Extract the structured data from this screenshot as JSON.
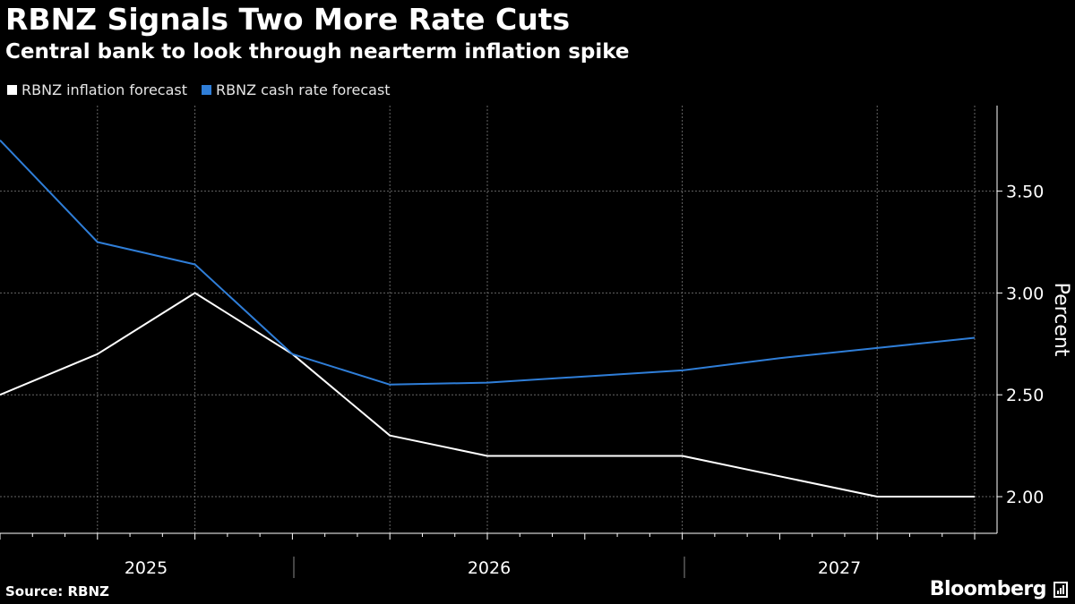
{
  "header": {
    "title": "RBNZ Signals Two More Rate Cuts",
    "subtitle": "Central bank to look through nearterm inflation spike"
  },
  "footer": {
    "source": "Source: RBNZ",
    "brand": "Bloomberg",
    "brand_icon": "bloomberg-chart-icon"
  },
  "colors": {
    "background": "#000000",
    "inflation": "#ffffff",
    "cash_rate": "#2f7ed8",
    "grid": "#666666"
  },
  "chart_data": {
    "type": "line",
    "title": "RBNZ Signals Two More Rate Cuts",
    "subtitle": "Central bank to look through nearterm inflation spike",
    "ylabel": "Percent",
    "xlabel": "",
    "ylim": [
      1.82,
      3.92
    ],
    "yticks": [
      2.0,
      2.5,
      3.0,
      3.5
    ],
    "ytick_labels": [
      "2.00",
      "2.50",
      "3.00",
      "3.50"
    ],
    "x_periods": [
      "2025Q1",
      "2025Q2",
      "2025Q3",
      "2025Q4",
      "2026Q1",
      "2026Q2",
      "2026Q3",
      "2026Q4",
      "2027Q1",
      "2027Q2",
      "2027Q3"
    ],
    "x_year_labels": [
      "2025",
      "2026",
      "2027"
    ],
    "legend": [
      "RBNZ inflation forecast",
      "RBNZ cash rate forecast"
    ],
    "series": [
      {
        "name": "RBNZ inflation forecast",
        "values": [
          2.5,
          2.7,
          3.0,
          2.7,
          2.3,
          2.2,
          2.2,
          2.2,
          2.1,
          2.0,
          2.0
        ]
      },
      {
        "name": "RBNZ cash rate forecast",
        "values": [
          3.75,
          3.25,
          3.14,
          2.7,
          2.55,
          2.56,
          2.59,
          2.62,
          2.68,
          2.73,
          2.78
        ]
      }
    ]
  }
}
